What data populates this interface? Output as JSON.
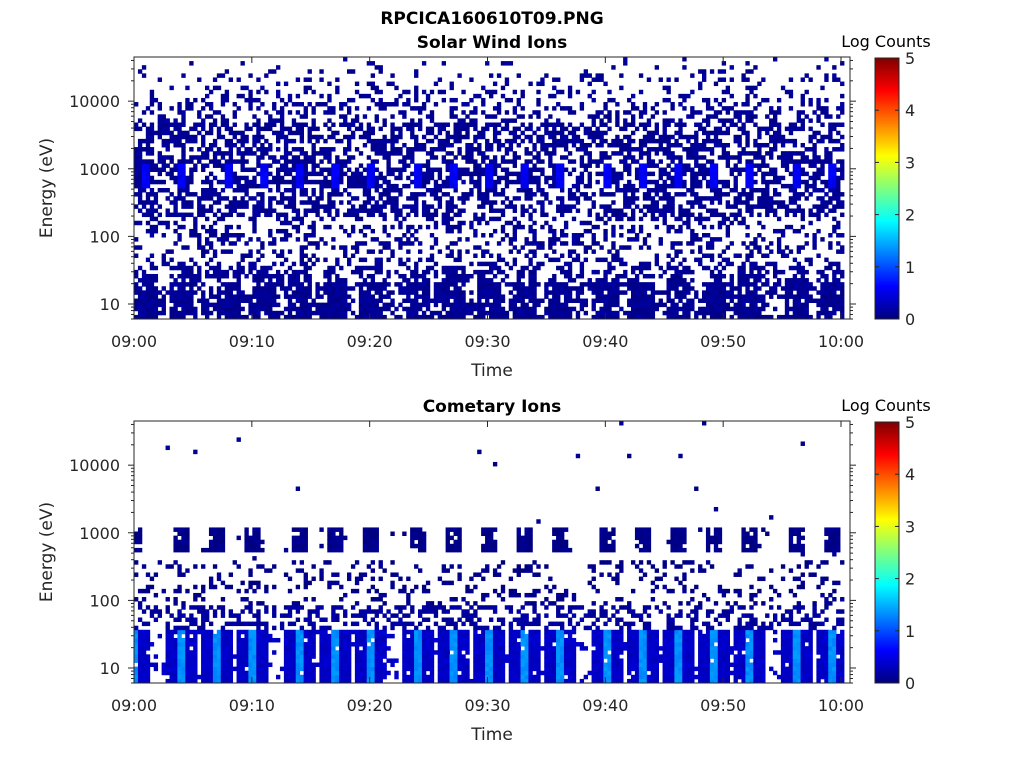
{
  "figure": {
    "title": "RPCICA160610T09.PNG"
  },
  "colorscale": {
    "stops": [
      "#00007f",
      "#0000ff",
      "#007fff",
      "#00ffff",
      "#7fff7f",
      "#ffff00",
      "#ff7f00",
      "#ff0000",
      "#7f0000"
    ]
  },
  "chart_data": [
    {
      "type": "heatmap",
      "title": "Solar Wind Ions",
      "xlabel": "Time",
      "ylabel": "Energy (eV)",
      "x_ticks": [
        "09:00",
        "09:10",
        "09:20",
        "09:30",
        "09:40",
        "09:50",
        "10:00"
      ],
      "x_range": [
        "09:00",
        "10:00"
      ],
      "y_scale": "log",
      "y_range": [
        6,
        45000
      ],
      "y_ticks": [
        10,
        100,
        1000,
        10000
      ],
      "y_tick_labels": [
        "10",
        "100",
        "1000",
        "10000"
      ],
      "colorbar": {
        "label": "Log Counts",
        "range": [
          0,
          5
        ],
        "ticks": [
          "0",
          "1",
          "2",
          "3",
          "4",
          "5"
        ]
      },
      "features": {
        "beam_center_energy_eV": 750,
        "beam_peak_times": [
          "09:01",
          "09:04",
          "09:08",
          "09:11",
          "09:14",
          "09:17",
          "09:20",
          "09:24",
          "09:27",
          "09:30",
          "09:33",
          "09:36",
          "09:40",
          "09:43",
          "09:46",
          "09:49",
          "09:52",
          "09:56",
          "09:59"
        ],
        "beam_peak_log_counts": 0.8,
        "background_log_counts": 0.1,
        "low_energy_band_eV": [
          6,
          35
        ]
      }
    },
    {
      "type": "heatmap",
      "title": "Cometary Ions",
      "xlabel": "Time",
      "ylabel": "Energy (eV)",
      "x_ticks": [
        "09:00",
        "09:10",
        "09:20",
        "09:30",
        "09:40",
        "09:50",
        "10:00"
      ],
      "x_range": [
        "09:00",
        "10:00"
      ],
      "y_scale": "log",
      "y_range": [
        6,
        45000
      ],
      "y_ticks": [
        10,
        100,
        1000,
        10000
      ],
      "y_tick_labels": [
        "10",
        "100",
        "1000",
        "10000"
      ],
      "colorbar": {
        "label": "Log Counts",
        "range": [
          0,
          5
        ],
        "ticks": [
          "0",
          "1",
          "2",
          "3",
          "4",
          "5"
        ]
      },
      "features": {
        "bursts_at_1000eV_times": [
          "09:00",
          "09:04",
          "09:07",
          "09:10",
          "09:14",
          "09:17",
          "09:20",
          "09:24",
          "09:27",
          "09:30",
          "09:33",
          "09:36",
          "09:40",
          "09:43",
          "09:46",
          "09:49",
          "09:52",
          "09:56",
          "09:59"
        ],
        "low_energy_band_eV": [
          6,
          35
        ],
        "low_energy_peak_log_counts": 1.6,
        "background_log_counts": 0.1
      }
    }
  ]
}
